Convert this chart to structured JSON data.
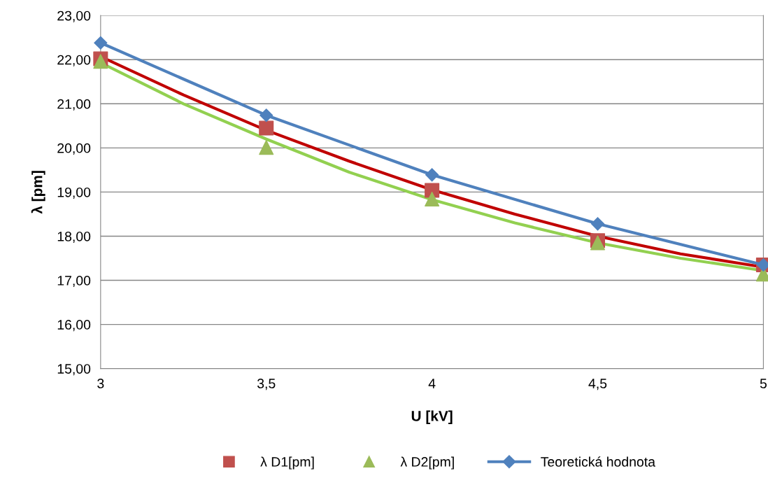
{
  "chart_data": {
    "type": "line",
    "xlabel": "U [kV]",
    "ylabel": "λ [pm]",
    "xlim": [
      3,
      5
    ],
    "xticks": [
      3,
      {
        "value": 3.5,
        "label": "3,5"
      },
      4,
      {
        "value": 4.5,
        "label": "4,5"
      },
      5
    ],
    "ylim": [
      15,
      23
    ],
    "yticks": [
      {
        "value": 15,
        "label": "15,00"
      },
      {
        "value": 16,
        "label": "16,00"
      },
      {
        "value": 17,
        "label": "17,00"
      },
      {
        "value": 18,
        "label": "18,00"
      },
      {
        "value": 19,
        "label": "19,00"
      },
      {
        "value": 20,
        "label": "20,00"
      },
      {
        "value": 21,
        "label": "21,00"
      },
      {
        "value": 22,
        "label": "22,00"
      },
      {
        "value": 23,
        "label": "23,00"
      }
    ],
    "grid": "y",
    "legend": "bottom",
    "series": [
      {
        "color": "#c00000",
        "x": [
          3,
          3.25,
          3.5,
          3.75,
          4,
          4.25,
          4.5,
          4.75,
          5
        ],
        "values": [
          22.07,
          21.2,
          20.4,
          19.7,
          19.05,
          18.5,
          18.0,
          17.6,
          17.3
        ],
        "marker": "none"
      },
      {
        "color": "#92d050",
        "x": [
          3,
          3.25,
          3.5,
          3.75,
          4,
          4.25,
          4.5,
          4.75,
          5
        ],
        "values": [
          21.93,
          21.0,
          20.2,
          19.45,
          18.83,
          18.3,
          17.85,
          17.5,
          17.22
        ],
        "marker": "none"
      },
      {
        "type": "scatter",
        "name": "λ D1[pm]",
        "color": "#c0504d",
        "x": [
          3,
          3.5,
          4,
          4.5,
          5
        ],
        "values": [
          22.02,
          20.45,
          19.04,
          17.9,
          17.35
        ],
        "marker": "square"
      },
      {
        "type": "scatter",
        "name": "λ D2[pm]",
        "color": "#9bbb59",
        "x": [
          3,
          3.5,
          4,
          4.5,
          5
        ],
        "values": [
          21.96,
          20.01,
          18.84,
          17.85,
          17.14
        ],
        "marker": "triangle"
      },
      {
        "name": "Teoretická hodnota",
        "color": "#4f81bd",
        "x": [
          3,
          3.5,
          4,
          4.5,
          5
        ],
        "values": [
          22.38,
          20.74,
          19.39,
          18.28,
          17.35
        ],
        "marker": "diamond"
      }
    ]
  }
}
